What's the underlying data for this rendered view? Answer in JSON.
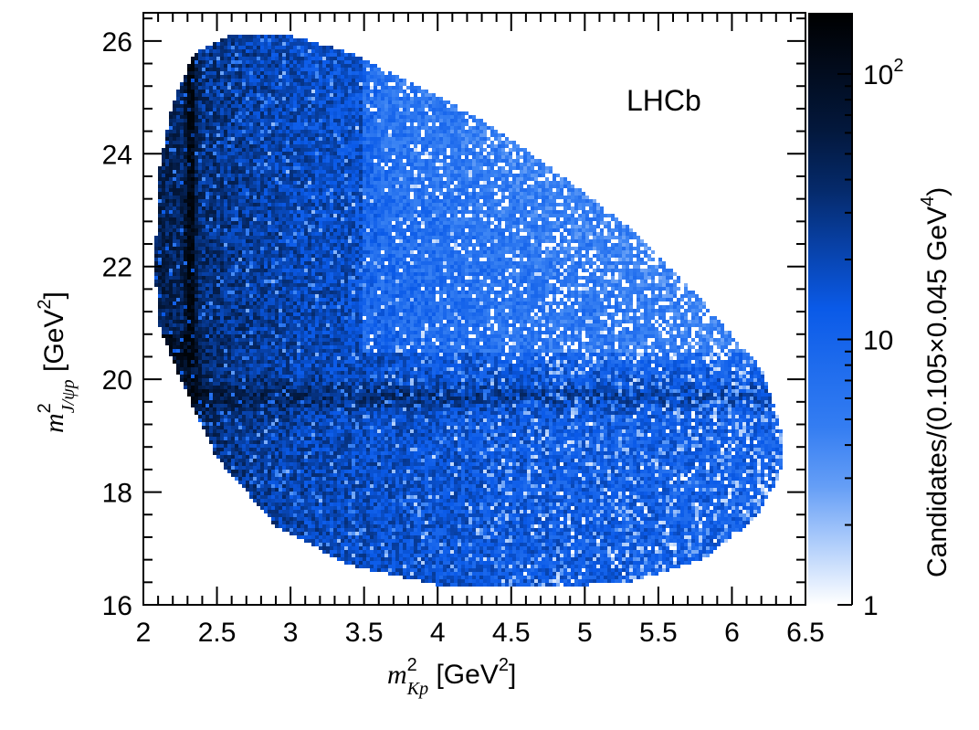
{
  "chart_data": {
    "type": "heatmap",
    "experiment_label": "LHCb",
    "x_axis": {
      "label_symbol": "m",
      "label_superscript": "2",
      "label_subscript": "Kp",
      "label_unit_open": " [GeV",
      "label_unit_sup": "2",
      "label_unit_close": "]",
      "range": [
        2,
        6.5
      ],
      "ticks": [
        2,
        2.5,
        3,
        3.5,
        4,
        4.5,
        5,
        5.5,
        6,
        6.5
      ],
      "tick_labels": [
        "2",
        "2.5",
        "3",
        "3.5",
        "4",
        "4.5",
        "5",
        "5.5",
        "6",
        "6.5"
      ]
    },
    "y_axis": {
      "label_symbol": "m",
      "label_superscript": "2",
      "label_subscript": "J/ψp",
      "label_unit_open": " [GeV",
      "label_unit_sup": "2",
      "label_unit_close": "]",
      "range": [
        16,
        26.5
      ],
      "ticks": [
        16,
        18,
        20,
        22,
        24,
        26
      ],
      "tick_labels": [
        "16",
        "18",
        "20",
        "22",
        "24",
        "26"
      ]
    },
    "colorbar": {
      "scale": "log",
      "range": [
        1,
        170
      ],
      "label_main": "Candidates/(0.105×0.045 GeV",
      "label_sup": "4",
      "label_close": ")",
      "tick_labels": [
        {
          "value": 1,
          "base": "1",
          "exp": ""
        },
        {
          "value": 10,
          "base": "10",
          "exp": ""
        },
        {
          "value": 100,
          "base": "10",
          "exp": "2"
        }
      ],
      "colors": [
        "#ffffff",
        "#3e86f4",
        "#0a5ae8",
        "#041e4c",
        "#000000"
      ]
    },
    "features": {
      "kinematic_boundary_points_x": [
        2.08,
        2.1,
        2.2,
        2.35,
        2.6,
        3.0,
        3.4,
        3.8,
        4.3,
        4.8,
        5.3,
        5.8,
        6.2,
        6.35,
        6.33,
        6.15,
        5.8,
        5.3,
        4.7,
        4.0,
        3.4,
        2.9,
        2.5,
        2.25,
        2.1
      ],
      "kinematic_boundary_points_y": [
        22.0,
        23.6,
        24.9,
        25.8,
        26.1,
        26.1,
        25.8,
        25.3,
        24.6,
        23.7,
        22.7,
        21.4,
        20.2,
        19.0,
        18.3,
        17.5,
        16.8,
        16.4,
        16.3,
        16.35,
        16.7,
        17.4,
        18.6,
        20.0,
        21.0
      ],
      "vertical_band_x": 2.32,
      "horizontal_band_y": 19.7
    }
  }
}
